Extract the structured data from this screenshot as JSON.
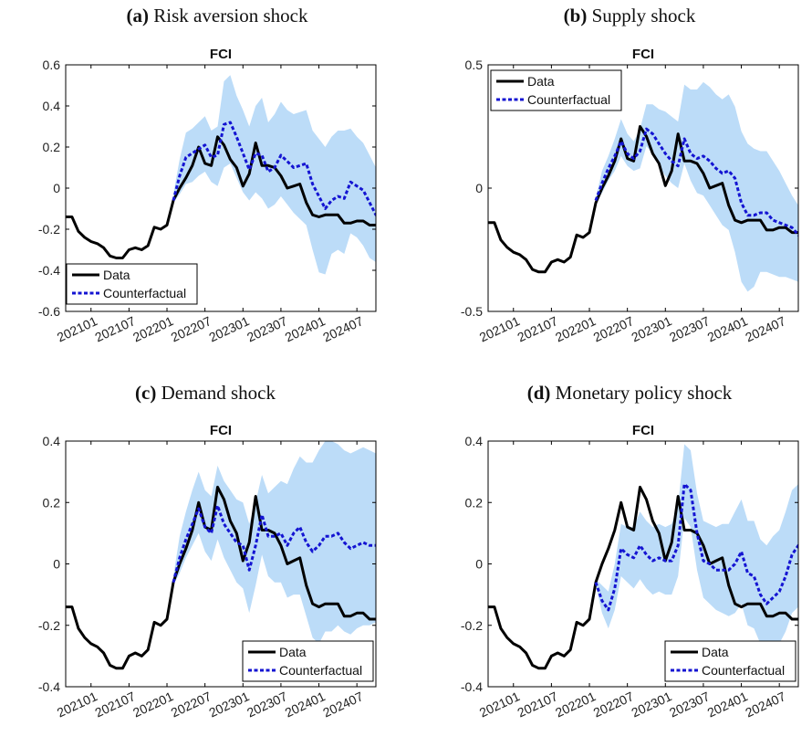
{
  "panels": [
    {
      "letter": "(a)",
      "caption": "Risk aversion shock"
    },
    {
      "letter": "(b)",
      "caption": "Supply shock"
    },
    {
      "letter": "(c)",
      "caption": "Demand shock"
    },
    {
      "letter": "(d)",
      "caption": "Monetary policy shock"
    }
  ],
  "colors": {
    "data": "#000000",
    "counterfactual": "#1414d2",
    "band": "#bcdcf8",
    "axis": "#000000"
  },
  "chart_data": [
    {
      "type": "line",
      "title": "FCI",
      "ylim": [
        -0.6,
        0.6
      ],
      "yticks": [
        -0.6,
        -0.4,
        -0.2,
        0,
        0.2,
        0.4,
        0.6
      ],
      "xlim": [
        "202009",
        "202410"
      ],
      "xticks": [
        "202101",
        "202107",
        "202201",
        "202207",
        "202301",
        "202307",
        "202401",
        "202407"
      ],
      "legend_position": "bottom-left",
      "series": [
        {
          "name": "Data",
          "x_start": "202009",
          "values": [
            -0.14,
            -0.14,
            -0.21,
            -0.24,
            -0.26,
            -0.27,
            -0.29,
            -0.33,
            -0.34,
            -0.34,
            -0.3,
            -0.29,
            -0.3,
            -0.28,
            -0.19,
            -0.2,
            -0.18,
            -0.06,
            0.0,
            0.05,
            0.11,
            0.2,
            0.12,
            0.11,
            0.25,
            0.21,
            0.14,
            0.1,
            0.01,
            0.07,
            0.22,
            0.11,
            0.11,
            0.1,
            0.06,
            0.0,
            0.01,
            0.02,
            -0.07,
            -0.13,
            -0.14,
            -0.13,
            -0.13,
            -0.13,
            -0.17,
            -0.17,
            -0.16,
            -0.16,
            -0.18,
            -0.18
          ]
        },
        {
          "name": "Counterfactual",
          "x_start": "202202",
          "values": [
            -0.06,
            0.06,
            0.15,
            0.17,
            0.19,
            0.21,
            0.15,
            0.16,
            0.31,
            0.32,
            0.25,
            0.17,
            0.09,
            0.17,
            0.16,
            0.08,
            0.1,
            0.16,
            0.13,
            0.1,
            0.11,
            0.12,
            0.02,
            -0.04,
            -0.1,
            -0.06,
            -0.04,
            -0.05,
            0.03,
            0.01,
            -0.01,
            -0.07,
            -0.13,
            -0.16
          ]
        }
      ],
      "band": {
        "x_start": "202202",
        "lower": [
          -0.07,
          -0.03,
          0.02,
          0.03,
          0.06,
          0.08,
          0.03,
          0.01,
          0.1,
          0.12,
          0.05,
          -0.02,
          -0.06,
          -0.02,
          -0.05,
          -0.1,
          -0.08,
          -0.04,
          -0.08,
          -0.12,
          -0.15,
          -0.18,
          -0.3,
          -0.41,
          -0.42,
          -0.32,
          -0.3,
          -0.32,
          -0.22,
          -0.24,
          -0.28,
          -0.34,
          -0.36,
          -0.37
        ],
        "upper": [
          -0.03,
          0.14,
          0.27,
          0.29,
          0.32,
          0.35,
          0.28,
          0.3,
          0.52,
          0.55,
          0.45,
          0.38,
          0.3,
          0.4,
          0.44,
          0.32,
          0.36,
          0.42,
          0.38,
          0.36,
          0.37,
          0.38,
          0.28,
          0.24,
          0.2,
          0.25,
          0.28,
          0.28,
          0.29,
          0.25,
          0.22,
          0.16,
          0.1,
          0.07
        ]
      }
    },
    {
      "type": "line",
      "title": "FCI",
      "ylim": [
        -0.5,
        0.5
      ],
      "yticks": [
        -0.5,
        0,
        0.5
      ],
      "xlim": [
        "202009",
        "202410"
      ],
      "xticks": [
        "202101",
        "202107",
        "202201",
        "202207",
        "202301",
        "202307",
        "202401",
        "202407"
      ],
      "legend_position": "top-left",
      "series": [
        {
          "name": "Data",
          "x_start": "202009",
          "values": [
            -0.14,
            -0.14,
            -0.21,
            -0.24,
            -0.26,
            -0.27,
            -0.29,
            -0.33,
            -0.34,
            -0.34,
            -0.3,
            -0.29,
            -0.3,
            -0.28,
            -0.19,
            -0.2,
            -0.18,
            -0.06,
            0.0,
            0.05,
            0.11,
            0.2,
            0.12,
            0.11,
            0.25,
            0.21,
            0.14,
            0.1,
            0.01,
            0.07,
            0.22,
            0.11,
            0.11,
            0.1,
            0.06,
            0.0,
            0.01,
            0.02,
            -0.07,
            -0.13,
            -0.14,
            -0.13,
            -0.13,
            -0.13,
            -0.17,
            -0.17,
            -0.16,
            -0.16,
            -0.18,
            -0.18
          ]
        },
        {
          "name": "Counterfactual",
          "x_start": "202202",
          "values": [
            -0.05,
            0.02,
            0.08,
            0.13,
            0.19,
            0.14,
            0.12,
            0.15,
            0.24,
            0.22,
            0.18,
            0.14,
            0.11,
            0.09,
            0.2,
            0.14,
            0.12,
            0.13,
            0.11,
            0.08,
            0.06,
            0.07,
            0.04,
            -0.06,
            -0.11,
            -0.11,
            -0.1,
            -0.1,
            -0.13,
            -0.14,
            -0.15,
            -0.16,
            -0.19,
            -0.2
          ]
        }
      ],
      "band": {
        "x_start": "202202",
        "lower": [
          -0.06,
          -0.02,
          0.03,
          0.07,
          0.13,
          0.09,
          0.07,
          0.08,
          0.17,
          0.14,
          0.09,
          0.05,
          0.02,
          0.0,
          0.1,
          0.03,
          -0.02,
          -0.03,
          -0.07,
          -0.11,
          -0.15,
          -0.17,
          -0.26,
          -0.38,
          -0.42,
          -0.4,
          -0.34,
          -0.34,
          -0.35,
          -0.36,
          -0.36,
          -0.37,
          -0.38,
          -0.37
        ],
        "upper": [
          -0.04,
          0.07,
          0.13,
          0.2,
          0.28,
          0.22,
          0.19,
          0.24,
          0.34,
          0.34,
          0.32,
          0.31,
          0.29,
          0.27,
          0.42,
          0.4,
          0.4,
          0.43,
          0.41,
          0.38,
          0.36,
          0.38,
          0.33,
          0.23,
          0.18,
          0.16,
          0.15,
          0.15,
          0.11,
          0.07,
          0.02,
          -0.03,
          -0.07,
          -0.11
        ]
      }
    },
    {
      "type": "line",
      "title": "FCI",
      "ylim": [
        -0.4,
        0.4
      ],
      "yticks": [
        -0.4,
        -0.2,
        0,
        0.2,
        0.4
      ],
      "xlim": [
        "202009",
        "202410"
      ],
      "xticks": [
        "202101",
        "202107",
        "202201",
        "202207",
        "202301",
        "202307",
        "202401",
        "202407"
      ],
      "legend_position": "bottom-right",
      "series": [
        {
          "name": "Data",
          "x_start": "202009",
          "values": [
            -0.14,
            -0.14,
            -0.21,
            -0.24,
            -0.26,
            -0.27,
            -0.29,
            -0.33,
            -0.34,
            -0.34,
            -0.3,
            -0.29,
            -0.3,
            -0.28,
            -0.19,
            -0.2,
            -0.18,
            -0.06,
            0.0,
            0.05,
            0.11,
            0.2,
            0.12,
            0.11,
            0.25,
            0.21,
            0.14,
            0.1,
            0.01,
            0.07,
            0.22,
            0.11,
            0.11,
            0.1,
            0.06,
            0.0,
            0.01,
            0.02,
            -0.07,
            -0.13,
            -0.14,
            -0.13,
            -0.13,
            -0.13,
            -0.17,
            -0.17,
            -0.16,
            -0.16,
            -0.18,
            -0.18
          ]
        },
        {
          "name": "Counterfactual",
          "x_start": "202202",
          "values": [
            -0.06,
            0.02,
            0.08,
            0.13,
            0.18,
            0.12,
            0.1,
            0.19,
            0.13,
            0.1,
            0.07,
            0.06,
            -0.02,
            0.06,
            0.16,
            0.09,
            0.09,
            0.1,
            0.06,
            0.1,
            0.12,
            0.07,
            0.04,
            0.06,
            0.09,
            0.09,
            0.1,
            0.07,
            0.05,
            0.06,
            0.07,
            0.06,
            0.06,
            0.05
          ]
        }
      ],
      "band": {
        "x_start": "202202",
        "lower": [
          -0.07,
          -0.03,
          0.02,
          0.06,
          0.1,
          0.04,
          0.01,
          0.08,
          0.02,
          -0.02,
          -0.06,
          -0.08,
          -0.16,
          -0.07,
          0.03,
          -0.04,
          -0.06,
          -0.06,
          -0.11,
          -0.1,
          -0.1,
          -0.17,
          -0.24,
          -0.26,
          -0.22,
          -0.22,
          -0.2,
          -0.22,
          -0.23,
          -0.21,
          -0.2,
          -0.2,
          -0.19,
          -0.19
        ],
        "upper": [
          -0.04,
          0.09,
          0.17,
          0.24,
          0.3,
          0.24,
          0.22,
          0.32,
          0.27,
          0.24,
          0.21,
          0.2,
          0.13,
          0.2,
          0.29,
          0.23,
          0.25,
          0.27,
          0.26,
          0.31,
          0.35,
          0.33,
          0.33,
          0.37,
          0.4,
          0.4,
          0.39,
          0.37,
          0.36,
          0.37,
          0.38,
          0.37,
          0.36,
          0.35
        ]
      }
    },
    {
      "type": "line",
      "title": "FCI",
      "ylim": [
        -0.4,
        0.4
      ],
      "yticks": [
        -0.4,
        -0.2,
        0,
        0.2,
        0.4
      ],
      "xlim": [
        "202009",
        "202410"
      ],
      "xticks": [
        "202101",
        "202107",
        "202201",
        "202207",
        "202301",
        "202307",
        "202401",
        "202407"
      ],
      "legend_position": "bottom-right",
      "series": [
        {
          "name": "Data",
          "x_start": "202009",
          "values": [
            -0.14,
            -0.14,
            -0.21,
            -0.24,
            -0.26,
            -0.27,
            -0.29,
            -0.33,
            -0.34,
            -0.34,
            -0.3,
            -0.29,
            -0.3,
            -0.28,
            -0.19,
            -0.2,
            -0.18,
            -0.06,
            0.0,
            0.05,
            0.11,
            0.2,
            0.12,
            0.11,
            0.25,
            0.21,
            0.14,
            0.1,
            0.01,
            0.07,
            0.22,
            0.11,
            0.11,
            0.1,
            0.06,
            0.0,
            0.01,
            0.02,
            -0.07,
            -0.13,
            -0.14,
            -0.13,
            -0.13,
            -0.13,
            -0.17,
            -0.17,
            -0.16,
            -0.16,
            -0.18,
            -0.18
          ]
        },
        {
          "name": "Counterfactual",
          "x_start": "202202",
          "values": [
            -0.06,
            -0.12,
            -0.15,
            -0.08,
            0.05,
            0.03,
            0.02,
            0.06,
            0.03,
            0.01,
            0.02,
            0.01,
            0.01,
            0.06,
            0.26,
            0.24,
            0.1,
            0.01,
            0.0,
            -0.02,
            -0.02,
            -0.02,
            0.0,
            0.04,
            -0.03,
            -0.04,
            -0.1,
            -0.13,
            -0.11,
            -0.09,
            -0.04,
            0.03,
            0.06,
            0.04
          ]
        }
      ],
      "band": {
        "x_start": "202202",
        "lower": [
          -0.07,
          -0.16,
          -0.21,
          -0.15,
          -0.04,
          -0.06,
          -0.08,
          -0.05,
          -0.08,
          -0.1,
          -0.09,
          -0.1,
          -0.1,
          -0.04,
          0.15,
          0.12,
          -0.02,
          -0.11,
          -0.13,
          -0.15,
          -0.16,
          -0.17,
          -0.16,
          -0.13,
          -0.2,
          -0.21,
          -0.26,
          -0.29,
          -0.28,
          -0.26,
          -0.22,
          -0.16,
          -0.14,
          -0.15
        ],
        "upper": [
          -0.05,
          -0.07,
          -0.09,
          0.0,
          0.13,
          0.12,
          0.12,
          0.17,
          0.14,
          0.12,
          0.13,
          0.12,
          0.13,
          0.19,
          0.39,
          0.37,
          0.23,
          0.14,
          0.13,
          0.12,
          0.13,
          0.13,
          0.17,
          0.21,
          0.14,
          0.14,
          0.08,
          0.06,
          0.09,
          0.11,
          0.17,
          0.24,
          0.26,
          0.24
        ]
      }
    }
  ]
}
